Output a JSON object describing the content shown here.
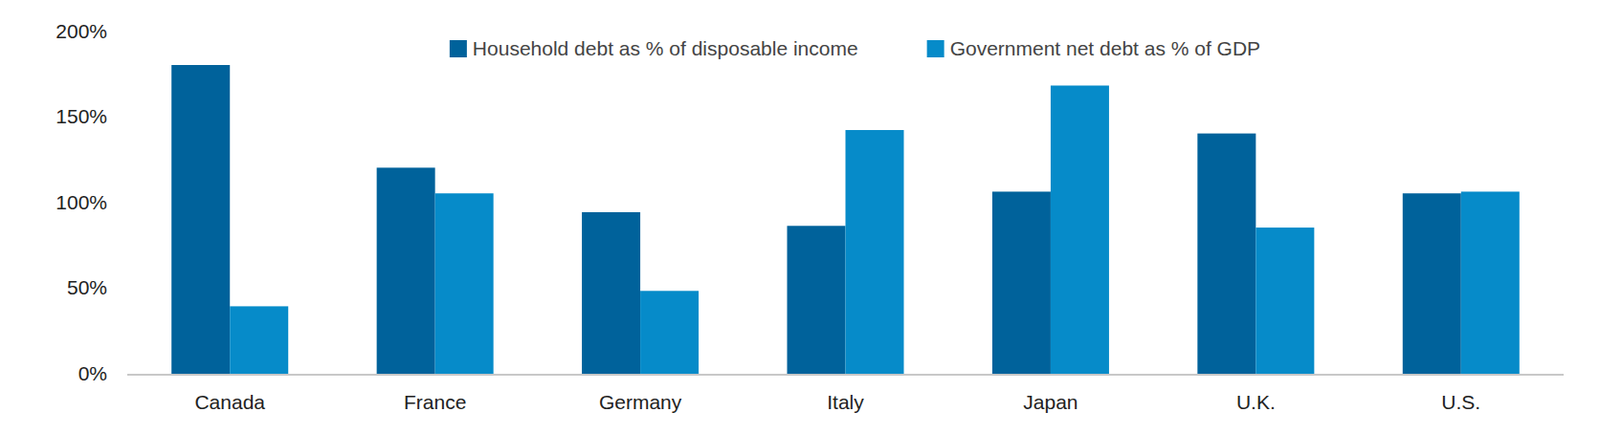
{
  "chart_data": {
    "type": "bar",
    "categories": [
      "Canada",
      "France",
      "Germany",
      "Italy",
      "Japan",
      "U.K.",
      "U.S."
    ],
    "series": [
      {
        "name": "Household debt as % of disposable income",
        "color": "#00629b",
        "values": [
          181,
          121,
          95,
          87,
          107,
          141,
          106
        ]
      },
      {
        "name": "Government net debt as % of GDP",
        "color": "#068bc9",
        "values": [
          40,
          106,
          49,
          143,
          169,
          86,
          107
        ]
      }
    ],
    "ylim": [
      0,
      200
    ],
    "yticks": [
      {
        "value": 0,
        "label": "0%"
      },
      {
        "value": 50,
        "label": "50%"
      },
      {
        "value": 100,
        "label": "100%"
      },
      {
        "value": 150,
        "label": "150%"
      },
      {
        "value": 200,
        "label": "200%"
      }
    ],
    "grid": false,
    "legend": "top"
  }
}
